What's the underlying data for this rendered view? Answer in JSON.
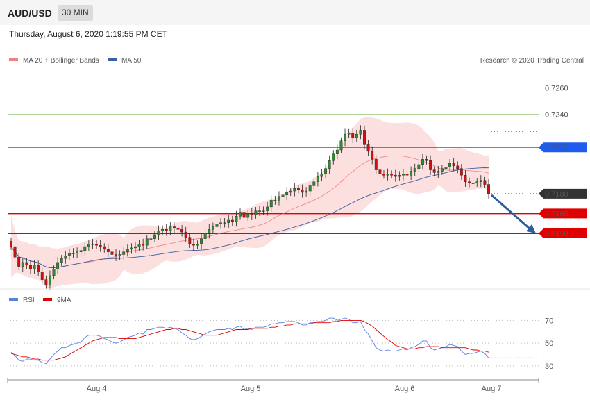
{
  "header": {
    "symbol": "AUD/USD",
    "timeframe": "30 MIN"
  },
  "datetime": "Thursday, August 6, 2020 1:19:55 PM CET",
  "credit": "Research © 2020 Trading Central",
  "colors": {
    "bollinger_fill": "#fcd9d9",
    "ma20": "#f08080",
    "ma50": "#3a5fa0",
    "level_up": "#7cb342",
    "level_blue": "#1e5cf0",
    "support": "#e00000",
    "current": "#333333",
    "candle_up": "#2e8b2e",
    "candle_down": "#d01010",
    "rsi": "#5b7fdd",
    "rsi_ma": "#e00000",
    "arrow": "#2f5d9e"
  },
  "chart_data": [
    {
      "type": "candlestick",
      "legend": [
        {
          "name": "MA 20 + Bollinger Bands",
          "color": "#f08080"
        },
        {
          "name": "MA 50",
          "color": "#3a5fa0"
        }
      ],
      "ylim": [
        0.7108,
        0.7276
      ],
      "x_ticks": [
        "Aug 4",
        "Aug 5",
        "Aug 6",
        "Aug 7"
      ],
      "levels": [
        {
          "label": "0.7260",
          "value": 0.726,
          "kind": "resistance"
        },
        {
          "label": "0.7240",
          "value": 0.724,
          "kind": "resistance"
        },
        {
          "label": "0.7215",
          "value": 0.7215,
          "kind": "pivot"
        },
        {
          "label": "0.7180",
          "value": 0.718,
          "kind": "current"
        },
        {
          "label": "0.7165",
          "value": 0.7165,
          "kind": "support"
        },
        {
          "label": "0.7150",
          "value": 0.715,
          "kind": "support"
        }
      ],
      "close": [
        0.714,
        0.7132,
        0.7125,
        0.7128,
        0.7126,
        0.7123,
        0.7126,
        0.7121,
        0.7115,
        0.7111,
        0.7118,
        0.7123,
        0.7128,
        0.7131,
        0.7133,
        0.7135,
        0.7135,
        0.7136,
        0.7137,
        0.714,
        0.7142,
        0.7142,
        0.7141,
        0.714,
        0.7138,
        0.7136,
        0.7134,
        0.7133,
        0.7134,
        0.7136,
        0.7138,
        0.7139,
        0.714,
        0.7142,
        0.7141,
        0.7146,
        0.7146,
        0.7149,
        0.7152,
        0.7153,
        0.7152,
        0.7155,
        0.7154,
        0.7153,
        0.7151,
        0.7147,
        0.7142,
        0.7141,
        0.7142,
        0.7146,
        0.715,
        0.7153,
        0.7155,
        0.7157,
        0.7158,
        0.7158,
        0.716,
        0.7159,
        0.7163,
        0.7166,
        0.7162,
        0.7165,
        0.7164,
        0.7167,
        0.7167,
        0.7167,
        0.717,
        0.7175,
        0.7175,
        0.7178,
        0.7179,
        0.7181,
        0.7182,
        0.7184,
        0.7183,
        0.7181,
        0.7182,
        0.7186,
        0.7189,
        0.7193,
        0.7195,
        0.7199,
        0.7205,
        0.721,
        0.7213,
        0.722,
        0.7225,
        0.7226,
        0.7222,
        0.7225,
        0.7228,
        0.7217,
        0.7212,
        0.7206,
        0.7198,
        0.7195,
        0.7194,
        0.7195,
        0.7194,
        0.7193,
        0.7194,
        0.7195,
        0.7194,
        0.7197,
        0.7199,
        0.7202,
        0.7206,
        0.7205,
        0.7198,
        0.7196,
        0.7197,
        0.7199,
        0.72,
        0.7203,
        0.7201,
        0.7199,
        0.7194,
        0.7189,
        0.7188,
        0.7188,
        0.7189,
        0.719,
        0.7187,
        0.718
      ],
      "series": [
        {
          "name": "RSI",
          "values": [
            42,
            39,
            35,
            34,
            36,
            36,
            35,
            35,
            33,
            32,
            36,
            40,
            43,
            46,
            46,
            48,
            49,
            50,
            51,
            55,
            57,
            57,
            57,
            56,
            54,
            53,
            51,
            50,
            51,
            53,
            55,
            56,
            57,
            59,
            58,
            62,
            62,
            63,
            64,
            64,
            63,
            64,
            63,
            62,
            59,
            57,
            54,
            53,
            54,
            56,
            58,
            60,
            61,
            62,
            62,
            62,
            63,
            62,
            64,
            65,
            62,
            63,
            62,
            64,
            64,
            64,
            65,
            67,
            67,
            68,
            68,
            69,
            69,
            69,
            68,
            66,
            66,
            68,
            68,
            69,
            69,
            70,
            72,
            72,
            70,
            71,
            72,
            71,
            68,
            68,
            69,
            62,
            58,
            52,
            46,
            44,
            43,
            44,
            43,
            43,
            44,
            45,
            44,
            46,
            47,
            49,
            52,
            52,
            46,
            44,
            45,
            46,
            47,
            49,
            48,
            47,
            43,
            40,
            41,
            41,
            42,
            43,
            41,
            37
          ]
        },
        {
          "name": "9MA",
          "values": [
            41,
            40,
            39,
            38,
            38,
            37,
            36,
            36,
            35,
            35,
            35,
            35,
            36,
            37,
            38,
            40,
            42,
            44,
            46,
            48,
            50,
            52,
            53,
            54,
            55,
            55,
            55,
            55,
            54,
            54,
            54,
            54,
            54,
            55,
            56,
            57,
            58,
            59,
            60,
            61,
            62,
            62,
            63,
            63,
            62,
            62,
            61,
            60,
            59,
            58,
            57,
            57,
            57,
            57,
            58,
            59,
            60,
            61,
            62,
            62,
            62,
            62,
            63,
            63,
            63,
            63,
            63,
            64,
            64,
            65,
            65,
            66,
            66,
            67,
            67,
            67,
            67,
            67,
            68,
            68,
            68,
            68,
            68,
            69,
            69,
            70,
            70,
            70,
            70,
            70,
            70,
            69,
            67,
            65,
            62,
            59,
            56,
            53,
            51,
            48,
            47,
            46,
            45,
            45,
            45,
            46,
            46,
            47,
            47,
            47,
            47,
            46,
            46,
            46,
            46,
            46,
            46,
            46,
            45,
            44,
            44,
            43,
            43,
            42
          ]
        }
      ],
      "rsi_ylim": [
        22,
        80
      ],
      "rsi_ticks": [
        "70",
        "50",
        "30"
      ]
    }
  ]
}
